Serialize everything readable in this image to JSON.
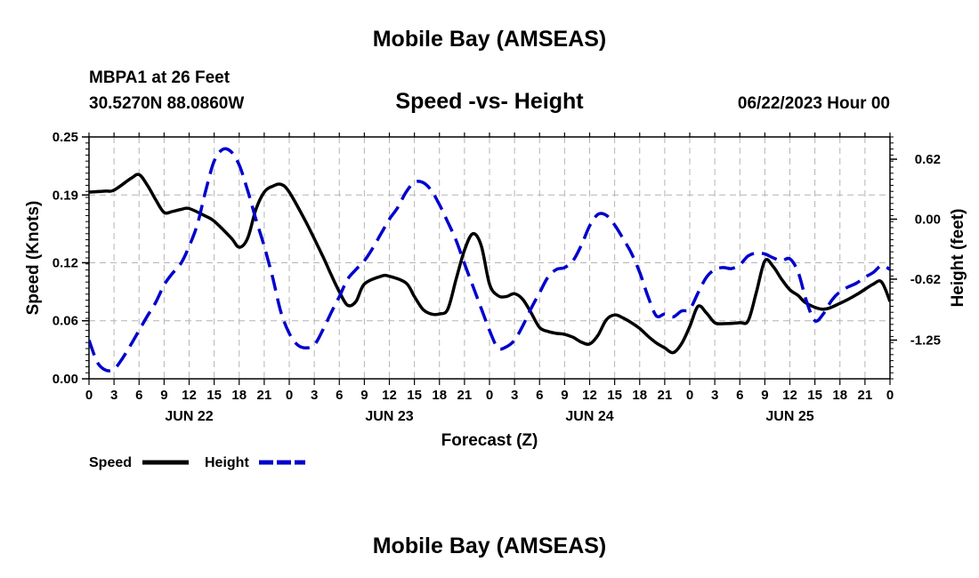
{
  "header": {
    "title": "Mobile Bay (AMSEAS)",
    "station": "MBPA1 at 26 Feet",
    "coords": "30.5270N  88.0860W",
    "subtitle": "Speed -vs- Height",
    "issued": "06/22/2023 Hour 00",
    "footer_title": "Mobile Bay (AMSEAS)"
  },
  "chart_data": {
    "type": "line",
    "title": "Speed -vs- Height",
    "xlabel": "Forecast (Z)",
    "ylabel": "Speed (Knots)",
    "y2label": "Height (feet)",
    "ylim": [
      0.0,
      0.25
    ],
    "y2lim": [
      -1.65,
      0.85
    ],
    "xlim": [
      0,
      96
    ],
    "yticks": [
      "0.00",
      "0.06",
      "0.12",
      "0.19",
      "0.25"
    ],
    "y2ticks": [
      "0.62",
      "0.00",
      "-0.62",
      "-1.25"
    ],
    "xticks": [
      "0",
      "3",
      "6",
      "9",
      "12",
      "15",
      "18",
      "21",
      "0",
      "3",
      "6",
      "9",
      "12",
      "15",
      "18",
      "21",
      "0",
      "3",
      "6",
      "9",
      "12",
      "15",
      "18",
      "21",
      "0",
      "3",
      "6",
      "9",
      "12",
      "15",
      "18",
      "21",
      "0"
    ],
    "day_labels": [
      "JUN 22",
      "JUN 23",
      "JUN 24",
      "JUN 25"
    ],
    "grid": true,
    "legend": "bottom-left",
    "series": [
      {
        "name": "Speed",
        "color": "#000000",
        "axis": "left",
        "x": [
          0,
          2,
          3,
          5,
          6,
          7,
          8,
          9,
          10,
          11,
          12,
          14,
          15,
          17,
          18,
          19,
          20,
          21,
          22,
          23,
          24,
          26,
          28,
          29,
          30,
          31,
          32,
          33,
          35,
          36,
          38,
          39,
          40,
          41,
          42,
          43,
          44,
          45,
          46,
          47,
          48,
          49,
          50,
          51,
          52,
          53,
          54,
          55,
          56,
          57,
          58,
          59,
          60,
          61,
          62,
          63,
          64,
          65,
          66,
          67,
          68,
          69,
          70,
          71,
          72,
          73,
          74,
          75,
          76,
          78,
          79,
          80,
          81,
          82,
          83,
          84,
          85,
          86,
          88,
          90,
          92,
          94,
          95,
          96
        ],
        "y": [
          0.193,
          0.194,
          0.195,
          0.207,
          0.211,
          0.2,
          0.185,
          0.172,
          0.173,
          0.175,
          0.176,
          0.168,
          0.163,
          0.146,
          0.136,
          0.145,
          0.175,
          0.193,
          0.199,
          0.201,
          0.193,
          0.162,
          0.127,
          0.108,
          0.09,
          0.076,
          0.08,
          0.098,
          0.106,
          0.106,
          0.099,
          0.085,
          0.072,
          0.067,
          0.067,
          0.072,
          0.103,
          0.133,
          0.15,
          0.138,
          0.098,
          0.086,
          0.085,
          0.088,
          0.082,
          0.068,
          0.053,
          0.049,
          0.047,
          0.046,
          0.043,
          0.038,
          0.036,
          0.045,
          0.061,
          0.066,
          0.063,
          0.058,
          0.052,
          0.044,
          0.037,
          0.032,
          0.027,
          0.036,
          0.054,
          0.075,
          0.068,
          0.058,
          0.057,
          0.058,
          0.06,
          0.09,
          0.122,
          0.116,
          0.103,
          0.092,
          0.086,
          0.078,
          0.072,
          0.078,
          0.087,
          0.098,
          0.1,
          0.08
        ]
      },
      {
        "name": "Height",
        "color": "#0000cc",
        "axis": "right",
        "x": [
          0,
          1,
          2,
          3,
          4,
          5,
          6,
          7,
          8,
          9,
          10,
          11,
          12,
          13,
          14,
          15,
          16,
          17,
          18,
          19,
          20,
          21,
          22,
          23,
          24,
          25,
          26,
          27,
          28,
          29,
          30,
          31,
          32,
          33,
          34,
          35,
          36,
          37,
          38,
          39,
          40,
          41,
          42,
          43,
          44,
          45,
          46,
          47,
          48,
          49,
          50,
          51,
          52,
          53,
          54,
          55,
          56,
          57,
          58,
          59,
          60,
          61,
          62,
          63,
          64,
          65,
          66,
          67,
          68,
          69,
          70,
          71,
          72,
          73,
          74,
          75,
          76,
          77,
          78,
          79,
          80,
          81,
          82,
          83,
          84,
          85,
          86,
          87,
          88,
          89,
          90,
          91,
          92,
          93,
          94,
          95,
          96
        ],
        "y": [
          -1.25,
          -1.48,
          -1.56,
          -1.55,
          -1.44,
          -1.3,
          -1.15,
          -1.0,
          -0.86,
          -0.68,
          -0.56,
          -0.46,
          -0.28,
          -0.05,
          0.3,
          0.6,
          0.72,
          0.7,
          0.56,
          0.3,
          0.0,
          -0.28,
          -0.6,
          -0.96,
          -1.18,
          -1.3,
          -1.33,
          -1.3,
          -1.15,
          -0.97,
          -0.8,
          -0.62,
          -0.52,
          -0.43,
          -0.3,
          -0.15,
          0.0,
          0.12,
          0.28,
          0.38,
          0.38,
          0.3,
          0.15,
          -0.03,
          -0.22,
          -0.46,
          -0.69,
          -0.92,
          -1.15,
          -1.33,
          -1.32,
          -1.25,
          -1.1,
          -0.92,
          -0.76,
          -0.6,
          -0.52,
          -0.5,
          -0.43,
          -0.27,
          -0.07,
          0.05,
          0.04,
          -0.06,
          -0.2,
          -0.35,
          -0.55,
          -0.8,
          -1.0,
          -0.98,
          -1.01,
          -0.95,
          -0.93,
          -0.76,
          -0.6,
          -0.52,
          -0.5,
          -0.51,
          -0.47,
          -0.38,
          -0.35,
          -0.36,
          -0.4,
          -0.43,
          -0.41,
          -0.55,
          -0.85,
          -1.05,
          -0.98,
          -0.84,
          -0.75,
          -0.7,
          -0.66,
          -0.6,
          -0.55,
          -0.48,
          -0.52
        ]
      }
    ]
  }
}
